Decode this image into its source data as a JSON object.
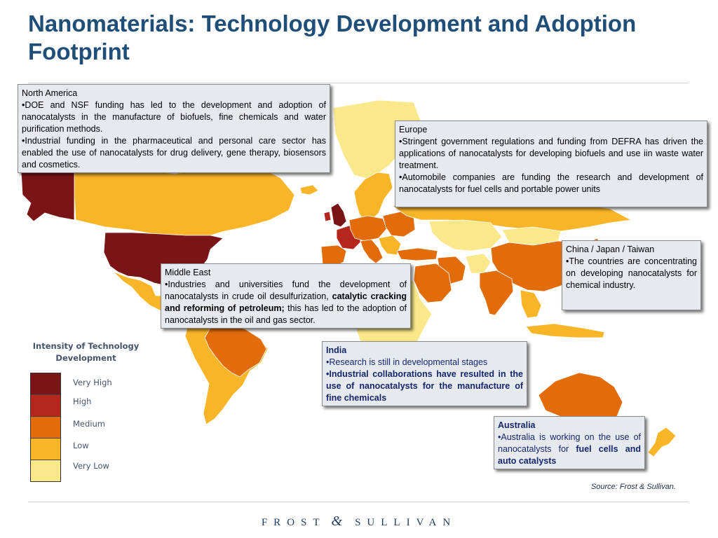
{
  "title": "Nanomaterials: Technology Development and Adoption Footprint",
  "colors": {
    "very_high": "#7b1416",
    "high": "#b5261d",
    "medium": "#e36c0a",
    "low": "#f9b528",
    "very_low": "#fae88a",
    "no_data": "#d9d9d9",
    "title_blue": "#1f4e79"
  },
  "legend": {
    "title": "Intensity of Technology Development",
    "items": [
      {
        "label": "Very High",
        "color": "#7b1416"
      },
      {
        "label": "High",
        "color": "#b5261d"
      },
      {
        "label": "Medium",
        "color": "#e36c0a"
      },
      {
        "label": "Low",
        "color": "#f9b528"
      },
      {
        "label": "Very Low",
        "color": "#fae88a"
      }
    ]
  },
  "boxes": {
    "north_america": {
      "region": "North America",
      "b1": "•DOE and NSF funding has led to the development and adoption of nanocatalysts in the manufacture of biofuels, fine chemicals and water purification methods.",
      "b2": "•Industrial funding in the pharmaceutical and personal care sector has enabled the use of nanocatalysts for drug delivery, gene therapy, biosensors and cosmetics."
    },
    "europe": {
      "region": "Europe",
      "b1": "•Stringent government regulations and funding from  DEFRA has driven the applications of nanocatalysts for developing biofuels and use iin waste water treatment.",
      "b2": "•Automobile companies are funding the research and development of nanocatalysts for fuel cells and portable power units"
    },
    "china": {
      "region": "China / Japan / Taiwan",
      "b1": "•The countries are concentrating on developing nanocatalysts for chemical industry."
    },
    "middle_east": {
      "region": "Middle East",
      "b1_pre": "•Industries and universities fund the development of nanocatalysts in crude oil desulfurization, ",
      "b1_bold": "catalytic cracking and reforming of petroleum;",
      "b1_post": " this has led to the adoption of nanocatalysts in the oil and gas sector."
    },
    "india": {
      "region": "India",
      "b1": "•Research is still in developmental stages",
      "b2": "•Industrial collaborations have resulted in the use of nanocatalysts for the manufacture of fine chemicals"
    },
    "australia": {
      "region": "Australia",
      "b1_pre": "•Australia is working on the use of nanocatalysts for ",
      "b1_bold": "fuel cells and auto catalysts"
    }
  },
  "source": "Source: Frost & Sullivan.",
  "logo": {
    "left": "FROST",
    "amp": "&",
    "right": "SULLIVAN"
  }
}
